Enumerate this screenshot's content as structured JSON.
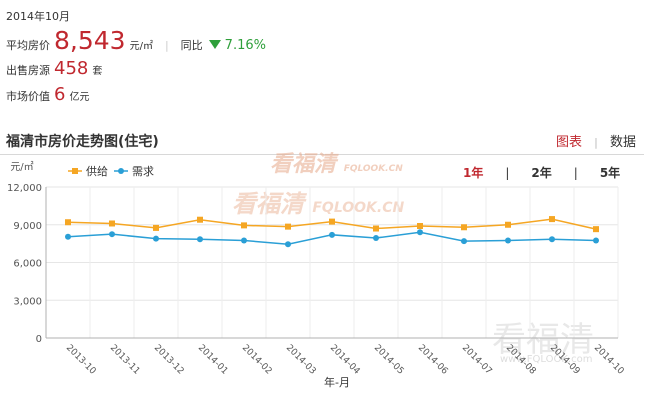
{
  "summary": {
    "date": "2014年10月",
    "avg_price_label": "平均房价",
    "avg_price_value": "8,543",
    "avg_price_unit": "元/㎡",
    "yoy_label": "同比",
    "yoy_value": "7.16%",
    "yoy_direction": "down",
    "listings_label": "出售房源",
    "listings_value": "458",
    "listings_unit": "套",
    "market_value_label": "市场价值",
    "market_value_value": "6",
    "market_value_unit": "亿元"
  },
  "section": {
    "title": "福清市房价走势图(住宅)",
    "view_chart": "图表",
    "view_data": "数据"
  },
  "range_options": [
    "1年",
    "2年",
    "5年"
  ],
  "range_selected": "1年",
  "watermark": {
    "brand": "看福清",
    "domain": "FQLOOK.CN",
    "corner_domain": "www.FQLOOK.com"
  },
  "colors": {
    "supply": "#f5a623",
    "demand": "#2a9fd6",
    "accent": "#c0282f",
    "down": "#2e9f3a"
  },
  "chart_data": {
    "type": "line",
    "y_unit_label": "元/㎡",
    "xlabel": "年-月",
    "ylim": [
      0,
      12000
    ],
    "yticks": [
      "0",
      "3,000",
      "6,000",
      "9,000",
      "12,000"
    ],
    "legend_position": "top-left",
    "grid": true,
    "categories": [
      "2013-10",
      "2013-11",
      "2013-12",
      "2014-01",
      "2014-02",
      "2014-03",
      "2014-04",
      "2014-05",
      "2014-06",
      "2014-07",
      "2014-08",
      "2014-09",
      "2014-10"
    ],
    "series": [
      {
        "name": "供给",
        "color": "#f5a623",
        "marker": "square",
        "values": [
          9200,
          9100,
          8750,
          9400,
          8950,
          8850,
          9250,
          8700,
          8900,
          8800,
          9000,
          9450,
          8650
        ]
      },
      {
        "name": "需求",
        "color": "#2a9fd6",
        "marker": "circle",
        "values": [
          8050,
          8250,
          7900,
          7850,
          7750,
          7450,
          8200,
          7950,
          8400,
          7700,
          7750,
          7850,
          7750
        ]
      }
    ]
  }
}
